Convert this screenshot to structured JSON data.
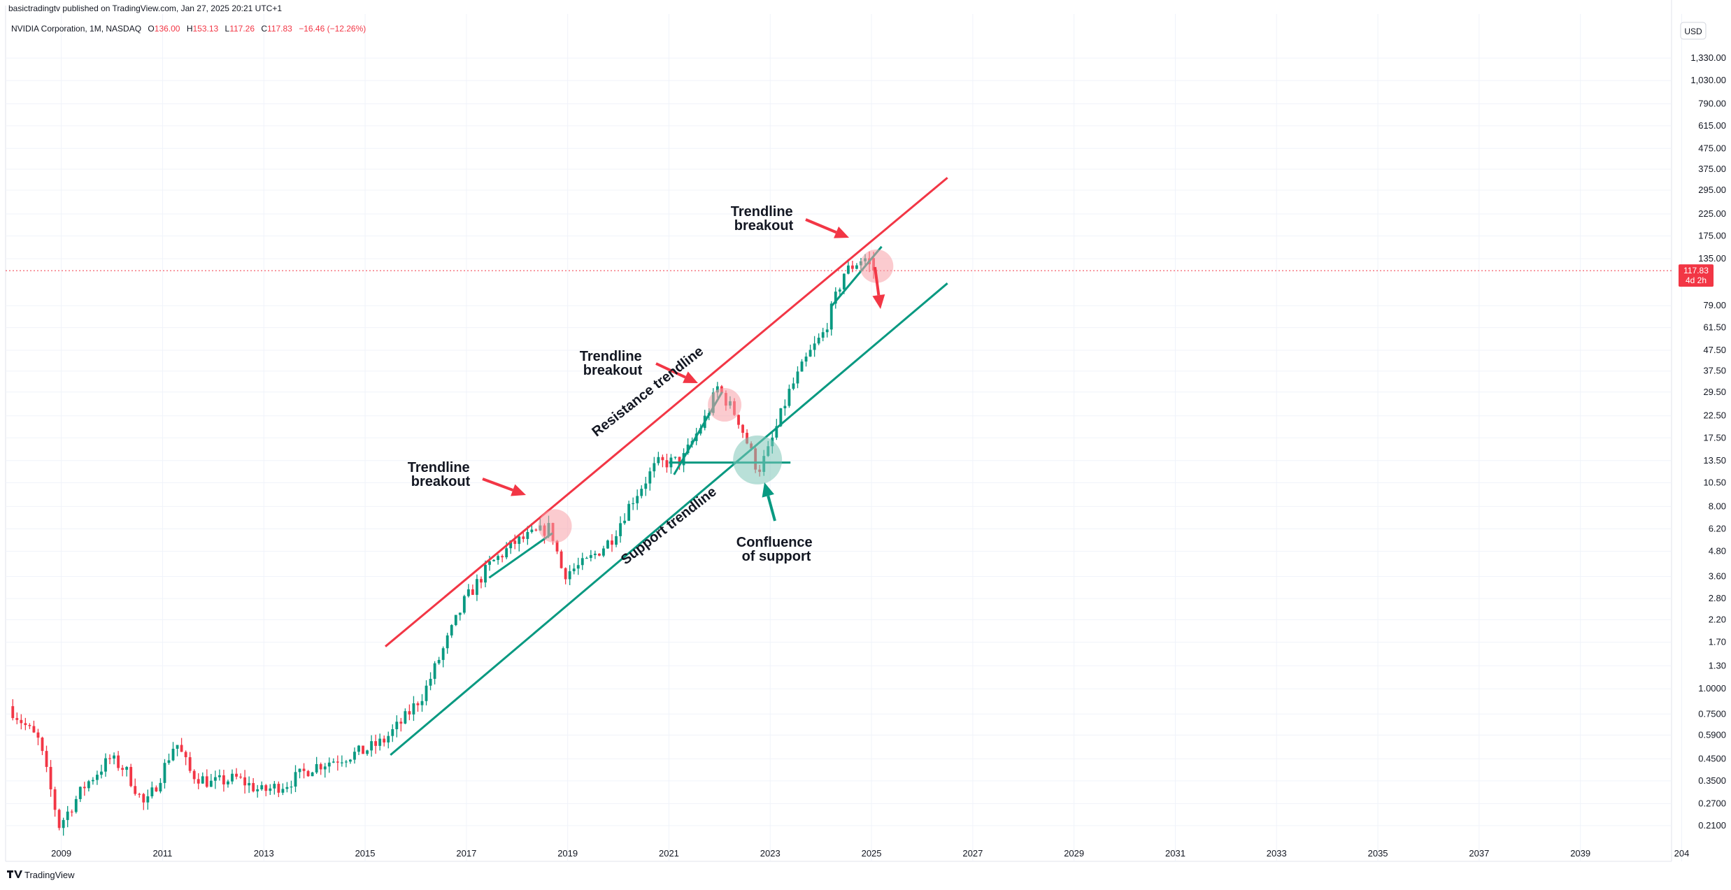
{
  "header": {
    "published_by": "basictradingtv published on TradingView.com, Jan 27, 2025 20:21 UTC+1",
    "instrument": "NVIDIA Corporation, 1M, NASDAQ",
    "o_label": "O",
    "o_value": "136.00",
    "h_label": "H",
    "h_value": "153.13",
    "l_label": "L",
    "l_value": "117.26",
    "c_label": "C",
    "c_value": "117.83",
    "change": "−16.46 (−12.26%)"
  },
  "currency": "USD",
  "footer_brand": "TradingView",
  "colors": {
    "up": "#089981",
    "down": "#f23645",
    "resistance": "#f23645",
    "support": "#089981",
    "breakout_circle": "#f7a1a8",
    "support_circle": "#7fc6b8",
    "grid": "#f0f3fa"
  },
  "chart_data": {
    "type": "candlestick",
    "title": "NVIDIA Corporation, 1M, NASDAQ",
    "scale": "log",
    "ylim": [
      0.16,
      1600
    ],
    "xlim": [
      2007.9,
      2040.8
    ],
    "y_ticks": [
      "1,330.00",
      "1,030.00",
      "790.00",
      "615.00",
      "475.00",
      "375.00",
      "295.00",
      "225.00",
      "175.00",
      "135.00",
      "79.00",
      "61.50",
      "47.50",
      "37.50",
      "29.50",
      "22.50",
      "17.50",
      "13.50",
      "10.50",
      "8.00",
      "6.20",
      "4.80",
      "3.60",
      "2.80",
      "2.20",
      "1.70",
      "1.30",
      "1.0000",
      "0.7500",
      "0.5900",
      "0.4500",
      "0.3500",
      "0.2700",
      "0.2100"
    ],
    "x_ticks": [
      "2009",
      "2011",
      "2013",
      "2015",
      "2017",
      "2019",
      "2021",
      "2023",
      "2025",
      "2027",
      "2029",
      "2031",
      "2033",
      "2035",
      "2037",
      "2039",
      "204"
    ],
    "last_price": "117.83",
    "countdown": "4d 2h",
    "trend_points": [
      [
        2008.0,
        0.82
      ],
      [
        2008.6,
        0.55
      ],
      [
        2009.0,
        0.21
      ],
      [
        2009.5,
        0.33
      ],
      [
        2010.0,
        0.45
      ],
      [
        2010.3,
        0.4
      ],
      [
        2010.7,
        0.26
      ],
      [
        2011.0,
        0.37
      ],
      [
        2011.3,
        0.55
      ],
      [
        2011.6,
        0.38
      ],
      [
        2012.0,
        0.34
      ],
      [
        2012.5,
        0.36
      ],
      [
        2013.0,
        0.31
      ],
      [
        2013.5,
        0.34
      ],
      [
        2014.0,
        0.41
      ],
      [
        2014.5,
        0.45
      ],
      [
        2015.0,
        0.49
      ],
      [
        2015.4,
        0.55
      ],
      [
        2015.8,
        0.7
      ],
      [
        2016.2,
        0.95
      ],
      [
        2016.6,
        1.6
      ],
      [
        2017.0,
        2.7
      ],
      [
        2017.5,
        4.1
      ],
      [
        2018.0,
        5.3
      ],
      [
        2018.7,
        6.3
      ],
      [
        2018.95,
        3.7
      ],
      [
        2019.4,
        4.2
      ],
      [
        2019.9,
        5.5
      ],
      [
        2020.3,
        8.5
      ],
      [
        2020.8,
        13.0
      ],
      [
        2021.3,
        13.5
      ],
      [
        2021.8,
        23.0
      ],
      [
        2022.0,
        31.0
      ],
      [
        2022.4,
        22.0
      ],
      [
        2022.8,
        12.0
      ],
      [
        2023.0,
        15.0
      ],
      [
        2023.4,
        29.0
      ],
      [
        2023.8,
        45.0
      ],
      [
        2024.1,
        58.0
      ],
      [
        2024.5,
        115.0
      ],
      [
        2024.9,
        138.0
      ],
      [
        2025.05,
        117.8
      ]
    ],
    "annotations": [
      {
        "text": "Trendline breakout",
        "year": 2018.7,
        "price": 6.4
      },
      {
        "text": "Trendline breakout",
        "year": 2022.1,
        "price": 26.0
      },
      {
        "text": "Trendline breakout",
        "year": 2025.05,
        "price": 125.0
      },
      {
        "text": "Confluence of support",
        "year": 2022.75,
        "price": 13.5
      }
    ],
    "resistance_line": {
      "label": "Resistance trendline",
      "from": [
        2015.4,
        1.62
      ],
      "to": [
        2026.5,
        340.0
      ]
    },
    "support_line": {
      "label": "Support trendline",
      "from": [
        2015.5,
        0.47
      ],
      "to": [
        2026.5,
        102.0
      ]
    },
    "horizontal_support": {
      "price": 13.2,
      "from": 2021.0,
      "to": 2023.4
    }
  },
  "annotation_labels": {
    "a1_line1": "Trendline",
    "a1_line2": "breakout",
    "a2_line1": "Trendline",
    "a2_line2": "breakout",
    "a3_line1": "Trendline",
    "a3_line2": "breakout",
    "a4_line1": "Confluence",
    "a4_line2": "of support",
    "resistance": "Resistance trendline",
    "support": "Support trendline"
  }
}
